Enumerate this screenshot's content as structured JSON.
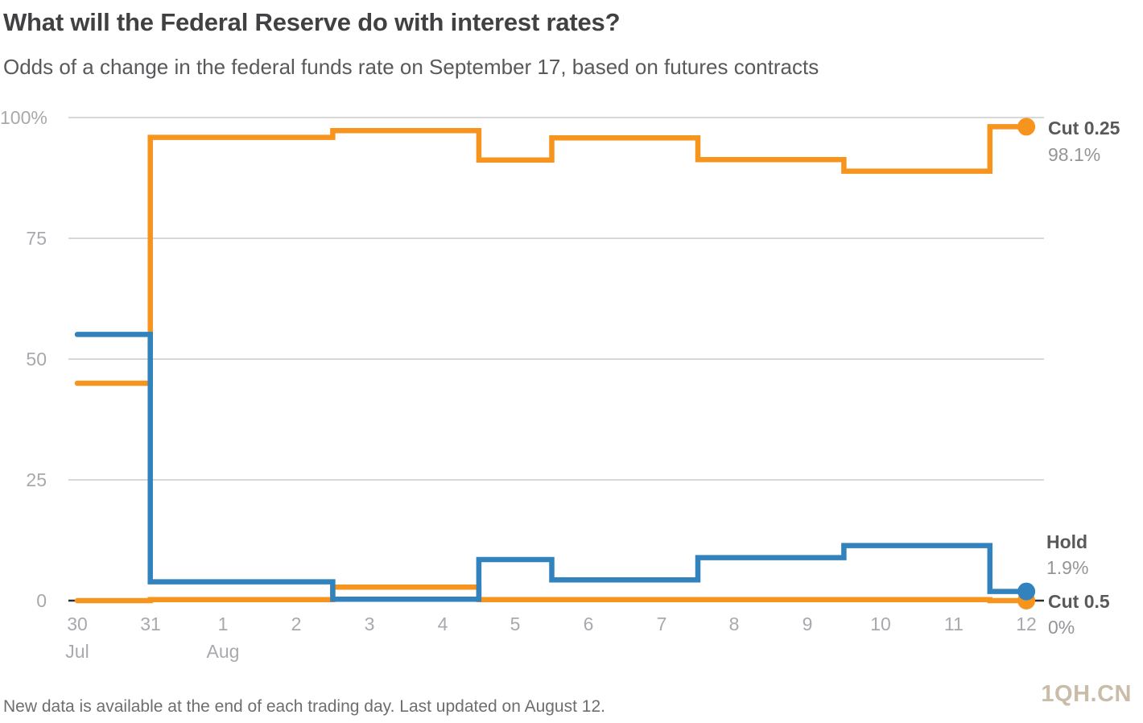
{
  "chart_data": {
    "type": "line",
    "step_style": "mid",
    "title": "What will the Federal Reserve do with interest rates?",
    "subtitle": "Odds of a change in the federal funds rate on September 17, based on futures contracts",
    "grid": "horizontal",
    "legend_position": "right-end-annotations",
    "grid_color": "#d8d8d8",
    "axis_color": "#2e2e30",
    "x": {
      "tick_labels": [
        "30",
        "31",
        "1",
        "2",
        "3",
        "4",
        "5",
        "6",
        "7",
        "8",
        "9",
        "10",
        "11",
        "12"
      ],
      "month_labels": [
        {
          "label": "Jul",
          "under_tick": "30"
        },
        {
          "label": "Aug",
          "under_tick": "1"
        }
      ]
    },
    "y": {
      "ticks": [
        100,
        75,
        50,
        25,
        0
      ],
      "tick_labels": [
        "100%",
        "75",
        "50",
        "25",
        "0"
      ],
      "range": [
        0,
        100
      ]
    },
    "point_dates": [
      "Jul 30",
      "Aug 1",
      "Aug 4",
      "Aug 5",
      "Aug 6",
      "Aug 7",
      "Aug 8",
      "Aug 11",
      "Aug 12"
    ],
    "day_offsets": [
      0,
      2,
      5,
      6,
      7,
      8,
      9,
      12,
      13
    ],
    "series": [
      {
        "id": "cut-025",
        "name": "Cut 0.25",
        "color": "#f7941e",
        "end_label": "98.1%",
        "values": [
          45.0,
          95.9,
          97.3,
          91.2,
          95.8,
          95.8,
          91.3,
          88.9,
          98.1
        ]
      },
      {
        "id": "cut-05",
        "name": "Cut 0.5",
        "color": "#f7941e",
        "end_label": "0%",
        "values": [
          0.0,
          0.2,
          2.8,
          0.2,
          0.2,
          0.2,
          0.2,
          0.2,
          0.0
        ]
      },
      {
        "id": "hold",
        "name": "Hold",
        "color": "#3182bd",
        "end_label": "1.9%",
        "values": [
          55.1,
          3.9,
          0.3,
          8.5,
          4.3,
          4.3,
          8.9,
          11.4,
          1.9
        ]
      }
    ]
  },
  "footer": {
    "note": "New data is available at the end of each trading day. Last updated on August 12.",
    "watermark": "1QH.CN"
  }
}
